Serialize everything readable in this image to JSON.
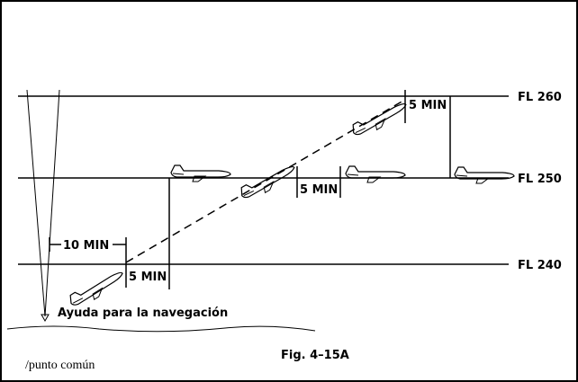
{
  "labels": {
    "fl_260": "FL 260",
    "fl_250": "FL 250",
    "fl_240": "FL 240"
  },
  "intervals": [
    "10 MIN",
    "5 MIN",
    "5 MIN",
    "5 MIN"
  ],
  "navaid": "Ayuda para la navegación",
  "footnote": "/punto común",
  "figure": "Fig. 4–15A"
}
